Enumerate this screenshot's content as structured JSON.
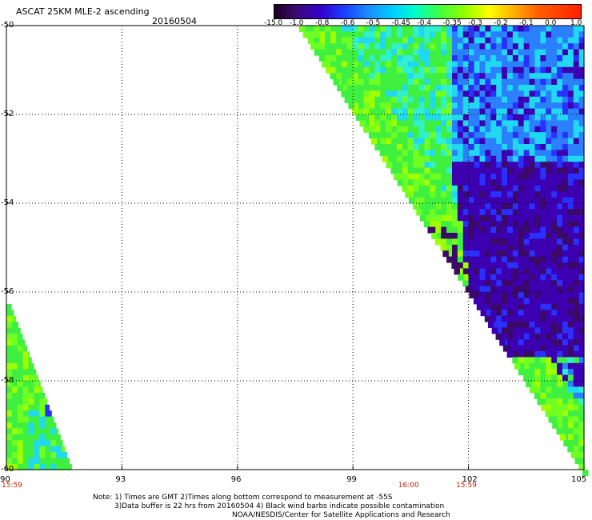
{
  "header": {
    "title": "ASCAT 25KM MLE-2 ascending",
    "date": "20160504"
  },
  "colorbar": {
    "labels": [
      "-15.0",
      "-1.0",
      "-0.8",
      "-0.6",
      "-0.5",
      "-0.45",
      "-0.4",
      "-0.35",
      "-0.3",
      "-0.2",
      "-0.1",
      "0.0",
      "1.0"
    ],
    "colors": [
      "#2a0033",
      "#3b0a70",
      "#3300cc",
      "#1a40ff",
      "#1a90ff",
      "#00d0ff",
      "#00ffcc",
      "#40ff40",
      "#90ff00",
      "#ffff00",
      "#ffb000",
      "#ff6000",
      "#ff2000"
    ]
  },
  "axes": {
    "lat_labels": [
      "-50",
      "-52",
      "-54",
      "-56",
      "-58",
      "-60"
    ],
    "lat_values": [
      -50,
      -52,
      -54,
      -56,
      -58,
      -60
    ],
    "lon_labels": [
      "90",
      "93",
      "96",
      "99",
      "102",
      "105"
    ],
    "lon_values": [
      90,
      93,
      96,
      99,
      102,
      105
    ],
    "time_labels": [
      {
        "text": "15:59",
        "lon": 90
      },
      {
        "text": "16:00",
        "lon": 100.3
      },
      {
        "text": "15:59",
        "lon": 101.8
      }
    ]
  },
  "notes": {
    "line1": "Note: 1) Times are GMT 2)Times along bottom correspond to measurement at -55S",
    "line2": "3)Data buffer is 22 hrs from 20160504 4) Black wind barbs indicate possible contamination",
    "line3": "NOAA/NESDIS/Center for Satellite Applications and Research"
  }
}
